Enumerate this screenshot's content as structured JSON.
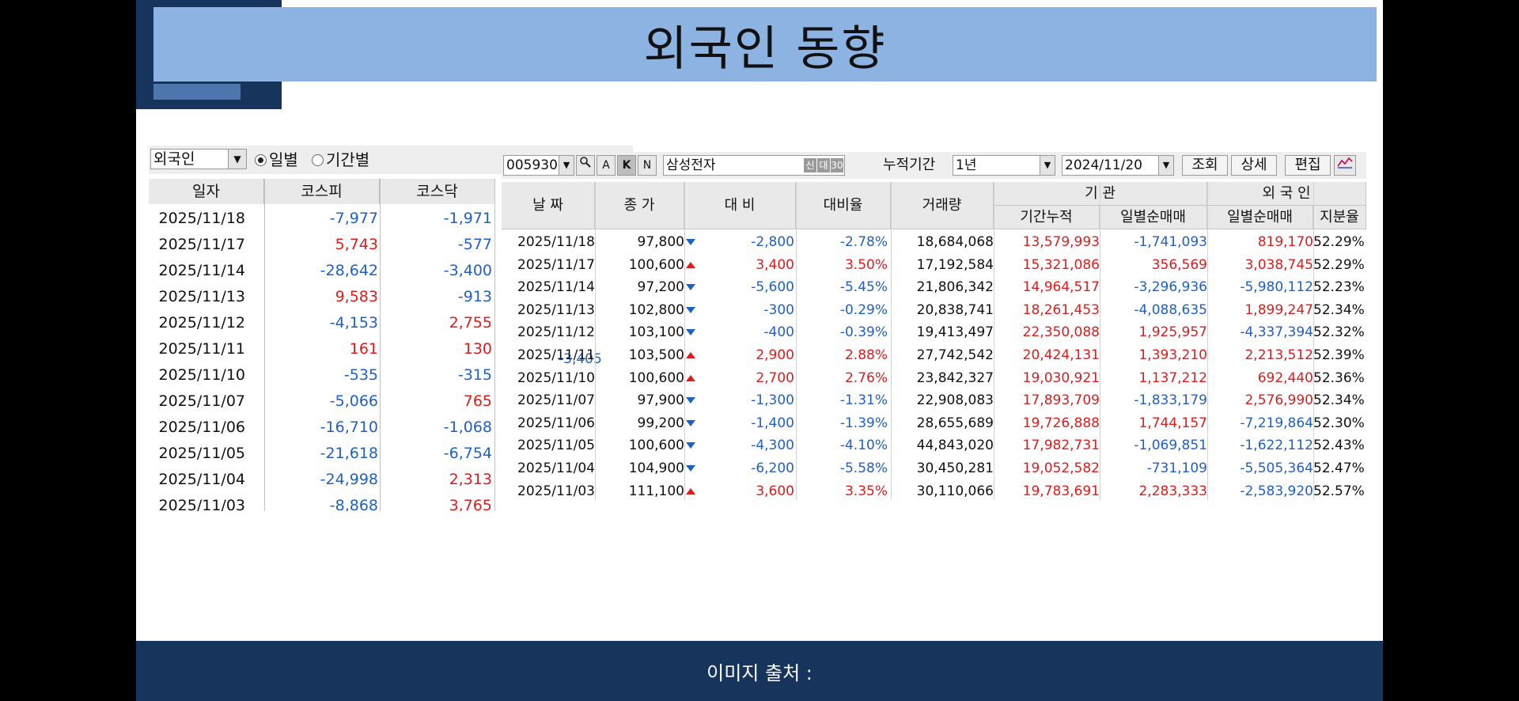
{
  "slide": {
    "title": "외국인 동향",
    "footer": "이미지 출처 :"
  },
  "left_panel": {
    "investor_select": "외국인",
    "radio_daily": "일별",
    "radio_period": "기간별",
    "columns": [
      "일자",
      "코스피",
      "코스닥"
    ],
    "rows": [
      {
        "date": "2025/11/18",
        "kospi": "-7,977",
        "kosdaq": "-1,971"
      },
      {
        "date": "2025/11/17",
        "kospi": "5,743",
        "kosdaq": "-577"
      },
      {
        "date": "2025/11/14",
        "kospi": "-28,642",
        "kosdaq": "-3,400"
      },
      {
        "date": "2025/11/13",
        "kospi": "9,583",
        "kosdaq": "-913"
      },
      {
        "date": "2025/11/12",
        "kospi": "-4,153",
        "kosdaq": "2,755"
      },
      {
        "date": "2025/11/11",
        "kospi": "161",
        "kosdaq": "130"
      },
      {
        "date": "2025/11/10",
        "kospi": "-535",
        "kosdaq": "-315"
      },
      {
        "date": "2025/11/07",
        "kospi": "-5,066",
        "kosdaq": "765"
      },
      {
        "date": "2025/11/06",
        "kospi": "-16,710",
        "kosdaq": "-1,068"
      },
      {
        "date": "2025/11/05",
        "kospi": "-21,618",
        "kosdaq": "-6,754"
      },
      {
        "date": "2025/11/04",
        "kospi": "-24,998",
        "kosdaq": "2,313"
      },
      {
        "date": "2025/11/03",
        "kospi": "-8,868",
        "kosdaq": "3,765"
      }
    ],
    "stray_value": "-3,405"
  },
  "right_panel": {
    "toolbar": {
      "code": "005930",
      "btn_a": "A",
      "btn_k": "K",
      "btn_n": "N",
      "stock_name": "삼성전자",
      "tag_1": "신",
      "tag_2": "대",
      "tag_3": "30",
      "period_label": "누적기간",
      "period_value": "1년",
      "date_value": "2024/11/20",
      "search_btn": "조회",
      "detail_btn": "상세",
      "edit_btn": "편집"
    },
    "headers": {
      "date": "날 짜",
      "close": "종 가",
      "change": "대 비",
      "change_rate": "대비율",
      "volume": "거래량",
      "inst_group": "기 관",
      "inst_cum": "기간누적",
      "inst_daily": "일별순매매",
      "foreign_group": "외 국 인",
      "foreign_daily": "일별순매매",
      "foreign_share": "지분율"
    },
    "rows": [
      {
        "date": "2025/11/18",
        "close": "97,800",
        "dir": "down",
        "change": "-2,800",
        "rate": "-2.78%",
        "volume": "18,684,068",
        "inst_cum": "13,579,993",
        "inst_daily": "-1,741,093",
        "foreign_daily": "819,170",
        "share": "52.29%"
      },
      {
        "date": "2025/11/17",
        "close": "100,600",
        "dir": "up",
        "change": "3,400",
        "rate": "3.50%",
        "volume": "17,192,584",
        "inst_cum": "15,321,086",
        "inst_daily": "356,569",
        "foreign_daily": "3,038,745",
        "share": "52.29%"
      },
      {
        "date": "2025/11/14",
        "close": "97,200",
        "dir": "down",
        "change": "-5,600",
        "rate": "-5.45%",
        "volume": "21,806,342",
        "inst_cum": "14,964,517",
        "inst_daily": "-3,296,936",
        "foreign_daily": "-5,980,112",
        "share": "52.23%"
      },
      {
        "date": "2025/11/13",
        "close": "102,800",
        "dir": "down",
        "change": "-300",
        "rate": "-0.29%",
        "volume": "20,838,741",
        "inst_cum": "18,261,453",
        "inst_daily": "-4,088,635",
        "foreign_daily": "1,899,247",
        "share": "52.34%"
      },
      {
        "date": "2025/11/12",
        "close": "103,100",
        "dir": "down",
        "change": "-400",
        "rate": "-0.39%",
        "volume": "19,413,497",
        "inst_cum": "22,350,088",
        "inst_daily": "1,925,957",
        "foreign_daily": "-4,337,394",
        "share": "52.32%"
      },
      {
        "date": "2025/11/11",
        "close": "103,500",
        "dir": "up",
        "change": "2,900",
        "rate": "2.88%",
        "volume": "27,742,542",
        "inst_cum": "20,424,131",
        "inst_daily": "1,393,210",
        "foreign_daily": "2,213,512",
        "share": "52.39%"
      },
      {
        "date": "2025/11/10",
        "close": "100,600",
        "dir": "up",
        "change": "2,700",
        "rate": "2.76%",
        "volume": "23,842,327",
        "inst_cum": "19,030,921",
        "inst_daily": "1,137,212",
        "foreign_daily": "692,440",
        "share": "52.36%"
      },
      {
        "date": "2025/11/07",
        "close": "97,900",
        "dir": "down",
        "change": "-1,300",
        "rate": "-1.31%",
        "volume": "22,908,083",
        "inst_cum": "17,893,709",
        "inst_daily": "-1,833,179",
        "foreign_daily": "2,576,990",
        "share": "52.34%"
      },
      {
        "date": "2025/11/06",
        "close": "99,200",
        "dir": "down",
        "change": "-1,400",
        "rate": "-1.39%",
        "volume": "28,655,689",
        "inst_cum": "19,726,888",
        "inst_daily": "1,744,157",
        "foreign_daily": "-7,219,864",
        "share": "52.30%"
      },
      {
        "date": "2025/11/05",
        "close": "100,600",
        "dir": "down",
        "change": "-4,300",
        "rate": "-4.10%",
        "volume": "44,843,020",
        "inst_cum": "17,982,731",
        "inst_daily": "-1,069,851",
        "foreign_daily": "-1,622,112",
        "share": "52.43%"
      },
      {
        "date": "2025/11/04",
        "close": "104,900",
        "dir": "down",
        "change": "-6,200",
        "rate": "-5.58%",
        "volume": "30,450,281",
        "inst_cum": "19,052,582",
        "inst_daily": "-731,109",
        "foreign_daily": "-5,505,364",
        "share": "52.47%"
      },
      {
        "date": "2025/11/03",
        "close": "111,100",
        "dir": "up",
        "change": "3,600",
        "rate": "3.35%",
        "volume": "30,110,066",
        "inst_cum": "19,783,691",
        "inst_daily": "2,283,333",
        "foreign_daily": "-2,583,920",
        "share": "52.57%"
      }
    ]
  },
  "colors": {
    "positive": "#e01b1b",
    "negative": "#1f5fc8",
    "title_bar": "#8db3e2",
    "navy": "#16345c"
  },
  "icons": {
    "search": "magnifier-icon",
    "chart": "line-chart-icon"
  }
}
